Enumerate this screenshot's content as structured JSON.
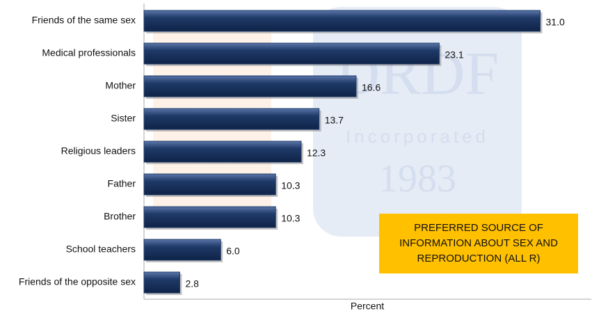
{
  "chart_data": {
    "type": "hbar",
    "categories": [
      "Friends of the same sex",
      "Medical professionals",
      "Mother",
      "Sister",
      "Religious leaders",
      "Father",
      "Brother",
      "School teachers",
      "Friends of the opposite sex"
    ],
    "values": [
      31.0,
      23.1,
      16.6,
      13.7,
      12.3,
      10.3,
      10.3,
      6.0,
      2.8
    ],
    "value_labels": [
      "31.0",
      "23.1",
      "16.6",
      "13.7",
      "12.3",
      "10.3",
      "10.3",
      "6.0",
      "2.8"
    ],
    "color": "#1f3a68",
    "xlim": [
      0,
      35
    ],
    "xlabel": "Percent",
    "annotation": [
      "PREFERRED SOURCE OF",
      "INFORMATION  ABOUT SEX AND",
      "REPRODUCTION (ALL R)"
    ],
    "watermark": [
      "DRDF",
      "Incorporated",
      "1983"
    ]
  }
}
